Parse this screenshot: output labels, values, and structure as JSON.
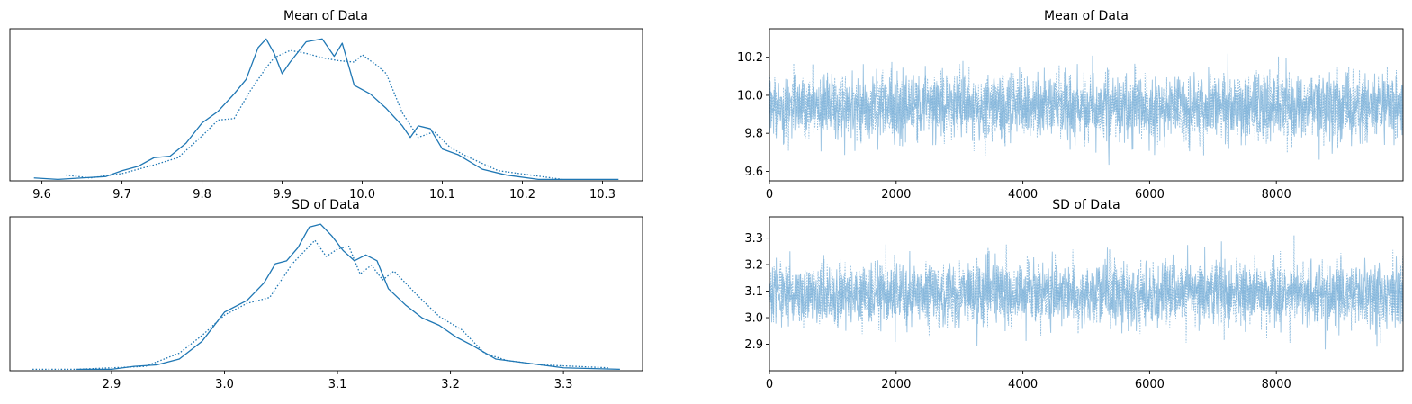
{
  "figure": {
    "colors": {
      "kde": "#1f77b4",
      "trace": "#7fb3d9",
      "axis": "#000000"
    }
  },
  "chart_data": [
    {
      "type": "line",
      "chart": "kde",
      "title": "Mean of Data",
      "xlabel": "",
      "ylabel": "",
      "xlim": [
        9.56,
        10.35
      ],
      "ylim": [
        0,
        1.05
      ],
      "xticks": [
        9.6,
        9.7,
        9.8,
        9.9,
        10.0,
        10.1,
        10.2,
        10.3
      ],
      "xtick_labels": [
        "9.6",
        "9.7",
        "9.8",
        "9.9",
        "10.0",
        "10.1",
        "10.2",
        "10.3"
      ],
      "yticks": [],
      "grid": false,
      "series": [
        {
          "style": "solid",
          "x": [
            9.59,
            9.62,
            9.65,
            9.68,
            9.7,
            9.72,
            9.74,
            9.76,
            9.78,
            9.8,
            9.82,
            9.84,
            9.855,
            9.87,
            9.88,
            9.89,
            9.9,
            9.91,
            9.93,
            9.95,
            9.965,
            9.975,
            9.99,
            10.01,
            10.03,
            10.05,
            10.06,
            10.07,
            10.085,
            10.1,
            10.12,
            10.15,
            10.18,
            10.22,
            10.28,
            10.32
          ],
          "y": [
            0.02,
            0.01,
            0.02,
            0.03,
            0.07,
            0.1,
            0.16,
            0.17,
            0.26,
            0.4,
            0.48,
            0.6,
            0.7,
            0.92,
            0.98,
            0.88,
            0.74,
            0.82,
            0.96,
            0.98,
            0.86,
            0.95,
            0.66,
            0.6,
            0.5,
            0.38,
            0.3,
            0.38,
            0.36,
            0.22,
            0.18,
            0.08,
            0.04,
            0.01,
            0.01,
            0.01
          ]
        },
        {
          "style": "dotted",
          "x": [
            9.63,
            9.66,
            9.7,
            9.74,
            9.77,
            9.8,
            9.82,
            9.84,
            9.86,
            9.88,
            9.89,
            9.91,
            9.93,
            9.95,
            9.97,
            9.99,
            10.0,
            10.02,
            10.03,
            10.05,
            10.07,
            10.09,
            10.11,
            10.13,
            10.17,
            10.21,
            10.25
          ],
          "y": [
            0.04,
            0.02,
            0.05,
            0.11,
            0.16,
            0.31,
            0.42,
            0.43,
            0.62,
            0.78,
            0.85,
            0.9,
            0.88,
            0.85,
            0.83,
            0.82,
            0.87,
            0.79,
            0.74,
            0.47,
            0.3,
            0.34,
            0.23,
            0.17,
            0.07,
            0.04,
            0.01
          ]
        }
      ]
    },
    {
      "type": "line",
      "chart": "trace",
      "title": "Mean of Data",
      "xlabel": "",
      "ylabel": "",
      "xlim": [
        0,
        10000
      ],
      "ylim": [
        9.55,
        10.35
      ],
      "xticks": [
        0,
        2000,
        4000,
        6000,
        8000
      ],
      "xtick_labels": [
        "0",
        "2000",
        "4000",
        "6000",
        "8000"
      ],
      "yticks": [
        9.6,
        9.8,
        10.0,
        10.2
      ],
      "ytick_labels": [
        "9.6",
        "9.8",
        "10.0",
        "10.2"
      ],
      "grid": false,
      "series": [
        {
          "style": "solid",
          "samples": 10000,
          "center": 9.94,
          "spread": 0.1,
          "min": 9.58,
          "max": 10.32
        },
        {
          "style": "dotted",
          "samples": 10000,
          "center": 9.94,
          "spread": 0.1,
          "min": 9.63,
          "max": 10.25
        }
      ]
    },
    {
      "type": "line",
      "chart": "kde",
      "title": "SD of Data",
      "xlabel": "",
      "ylabel": "",
      "xlim": [
        2.81,
        3.37
      ],
      "ylim": [
        0,
        1.05
      ],
      "xticks": [
        2.9,
        3.0,
        3.1,
        3.2,
        3.3
      ],
      "xtick_labels": [
        "2.9",
        "3.0",
        "3.1",
        "3.2",
        "3.3"
      ],
      "yticks": [],
      "grid": false,
      "series": [
        {
          "style": "solid",
          "x": [
            2.87,
            2.9,
            2.92,
            2.94,
            2.96,
            2.98,
            3.0,
            3.02,
            3.035,
            3.045,
            3.055,
            3.065,
            3.075,
            3.085,
            3.095,
            3.105,
            3.115,
            3.125,
            3.135,
            3.145,
            3.16,
            3.175,
            3.19,
            3.205,
            3.22,
            3.24,
            3.26,
            3.28,
            3.3,
            3.35
          ],
          "y": [
            0.01,
            0.01,
            0.03,
            0.04,
            0.08,
            0.2,
            0.4,
            0.48,
            0.6,
            0.73,
            0.75,
            0.84,
            0.98,
            1.0,
            0.92,
            0.82,
            0.75,
            0.79,
            0.75,
            0.56,
            0.45,
            0.36,
            0.31,
            0.23,
            0.17,
            0.08,
            0.06,
            0.04,
            0.02,
            0.01
          ]
        },
        {
          "style": "dotted",
          "x": [
            2.83,
            2.87,
            2.9,
            2.93,
            2.96,
            2.98,
            3.0,
            3.02,
            3.04,
            3.06,
            3.08,
            3.09,
            3.1,
            3.11,
            3.12,
            3.13,
            3.14,
            3.15,
            3.17,
            3.19,
            3.21,
            3.23,
            3.25,
            3.28,
            3.31,
            3.34
          ],
          "y": [
            0.01,
            0.01,
            0.02,
            0.03,
            0.12,
            0.24,
            0.38,
            0.46,
            0.5,
            0.73,
            0.89,
            0.78,
            0.83,
            0.85,
            0.66,
            0.72,
            0.62,
            0.68,
            0.52,
            0.37,
            0.28,
            0.12,
            0.07,
            0.04,
            0.03,
            0.02
          ]
        }
      ]
    },
    {
      "type": "line",
      "chart": "trace",
      "title": "SD of Data",
      "xlabel": "",
      "ylabel": "",
      "xlim": [
        0,
        10000
      ],
      "ylim": [
        2.8,
        3.38
      ],
      "xticks": [
        0,
        2000,
        4000,
        6000,
        8000
      ],
      "xtick_labels": [
        "0",
        "2000",
        "4000",
        "6000",
        "8000"
      ],
      "yticks": [
        2.9,
        3.0,
        3.1,
        3.2,
        3.3
      ],
      "ytick_labels": [
        "2.9",
        "3.0",
        "3.1",
        "3.2",
        "3.3"
      ],
      "grid": false,
      "series": [
        {
          "style": "solid",
          "samples": 10000,
          "center": 3.09,
          "spread": 0.07,
          "min": 2.86,
          "max": 3.35
        },
        {
          "style": "dotted",
          "samples": 10000,
          "center": 3.09,
          "spread": 0.07,
          "min": 2.83,
          "max": 3.34
        }
      ]
    }
  ]
}
